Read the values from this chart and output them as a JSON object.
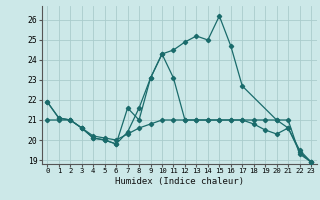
{
  "xlabel": "Humidex (Indice chaleur)",
  "background_color": "#cce8e8",
  "line_color": "#1a6b6b",
  "grid_color": "#aacccc",
  "xlim": [
    -0.5,
    23.5
  ],
  "ylim": [
    18.8,
    26.7
  ],
  "yticks": [
    19,
    20,
    21,
    22,
    23,
    24,
    25,
    26
  ],
  "xticks": [
    0,
    1,
    2,
    3,
    4,
    5,
    6,
    7,
    8,
    9,
    10,
    11,
    12,
    13,
    14,
    15,
    16,
    17,
    18,
    19,
    20,
    21,
    22,
    23
  ],
  "series1": {
    "x": [
      0,
      1,
      2,
      3,
      4,
      5,
      6,
      7,
      8,
      9,
      10,
      11,
      12,
      13,
      14,
      15,
      16,
      17,
      18,
      19,
      20,
      21,
      22,
      23
    ],
    "y": [
      21.9,
      21.1,
      21.0,
      20.6,
      20.1,
      20.0,
      19.8,
      21.6,
      21.0,
      23.1,
      24.3,
      23.1,
      21.0,
      21.0,
      21.0,
      21.0,
      21.0,
      21.0,
      21.0,
      21.0,
      21.0,
      21.0,
      19.3,
      18.9
    ]
  },
  "series2": {
    "x": [
      0,
      1,
      2,
      3,
      4,
      5,
      6,
      7,
      8,
      9,
      10,
      11,
      12,
      13,
      14,
      15,
      16,
      17,
      20,
      21,
      22,
      23
    ],
    "y": [
      21.9,
      21.1,
      21.0,
      20.6,
      20.1,
      20.0,
      19.8,
      20.4,
      21.6,
      23.1,
      24.3,
      24.5,
      24.9,
      25.2,
      25.0,
      26.2,
      24.7,
      22.7,
      21.0,
      20.6,
      19.4,
      18.9
    ]
  },
  "series3": {
    "x": [
      0,
      1,
      2,
      3,
      4,
      5,
      6,
      7,
      8,
      9,
      10,
      11,
      12,
      13,
      14,
      15,
      16,
      17,
      18,
      19,
      20,
      21,
      22,
      23
    ],
    "y": [
      21.0,
      21.0,
      21.0,
      20.6,
      20.2,
      20.1,
      20.0,
      20.3,
      20.6,
      20.8,
      21.0,
      21.0,
      21.0,
      21.0,
      21.0,
      21.0,
      21.0,
      21.0,
      20.8,
      20.5,
      20.3,
      20.6,
      19.5,
      18.9
    ]
  }
}
